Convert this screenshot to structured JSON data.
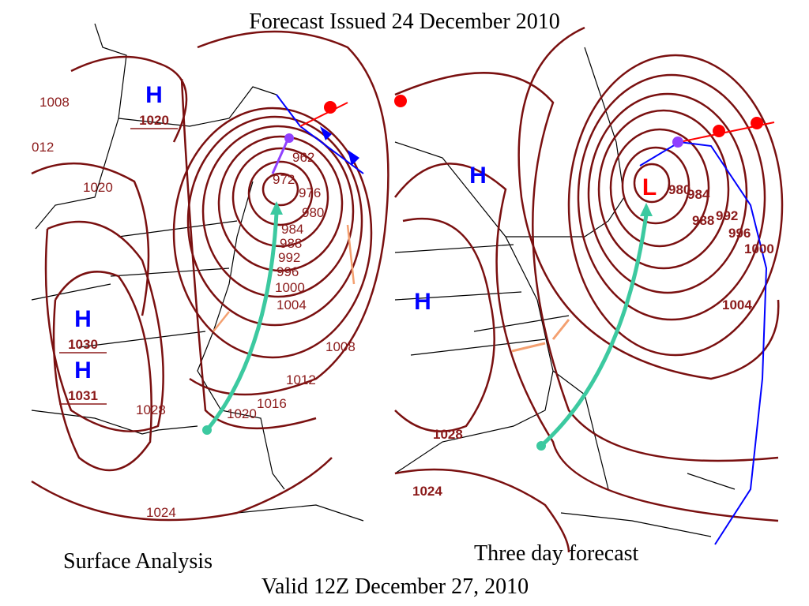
{
  "title": "Forecast Issued 24 December  2010",
  "footer": "Valid 12Z December 27, 2010",
  "maps": [
    {
      "caption": "Surface Analysis",
      "pressure_centers": [
        {
          "letter": "H",
          "value": "1020"
        },
        {
          "letter": "H",
          "value": "1030"
        },
        {
          "letter": "H",
          "value": "1031"
        }
      ],
      "isobar_labels": [
        "1008",
        "012",
        "1020",
        "962",
        "972",
        "976",
        "980",
        "984",
        "988",
        "992",
        "996",
        "1000",
        "1004",
        "1008",
        "1012",
        "1016",
        "1020",
        "1028",
        "1024"
      ]
    },
    {
      "caption": "Three day forecast",
      "pressure_centers": [
        {
          "letter": "H"
        },
        {
          "letter": "H"
        },
        {
          "letter": "L"
        }
      ],
      "isobar_labels": [
        "980",
        "984",
        "988",
        "992",
        "996",
        "1000",
        "1004",
        "1028",
        "1024"
      ]
    }
  ]
}
